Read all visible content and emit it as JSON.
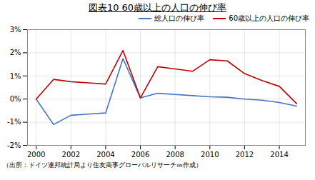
{
  "chart_data": {
    "type": "line",
    "title": "図表10  60歳以上の人口の伸び率",
    "source": "（出所：ドイツ連邦統計局より住友商事グローバルリサーチ㎚作成）",
    "x": [
      2000,
      2001,
      2002,
      2003,
      2004,
      2005,
      2006,
      2007,
      2008,
      2009,
      2010,
      2011,
      2012,
      2013,
      2014,
      2015
    ],
    "series": [
      {
        "name": "総人口の伸び率",
        "color": "#4472C4",
        "values": [
          0.0,
          -1.1,
          -0.7,
          -0.65,
          -0.6,
          1.75,
          0.05,
          0.25,
          0.2,
          0.15,
          0.1,
          0.08,
          0.0,
          -0.05,
          -0.15,
          -0.3
        ]
      },
      {
        "name": "60歳以上の人口の伸び率",
        "color": "#C00000",
        "values": [
          0.0,
          0.85,
          0.75,
          0.7,
          0.65,
          2.1,
          0.05,
          1.4,
          1.3,
          1.2,
          1.7,
          1.65,
          1.1,
          0.8,
          0.55,
          -0.2
        ]
      }
    ],
    "xlim": [
      1999.5,
      2015.5
    ],
    "xticks": [
      2000,
      2002,
      2004,
      2006,
      2008,
      2010,
      2012,
      2014
    ],
    "ylim": [
      -2.0,
      3.0
    ],
    "yticks": [
      {
        "value": -2,
        "label": "-2%"
      },
      {
        "value": -1,
        "label": "-1%"
      },
      {
        "value": 0,
        "label": "0%"
      },
      {
        "value": 1,
        "label": "1%"
      },
      {
        "value": 2,
        "label": "2%"
      },
      {
        "value": 3,
        "label": "3%"
      }
    ],
    "grid": true,
    "legend": "upper right"
  }
}
